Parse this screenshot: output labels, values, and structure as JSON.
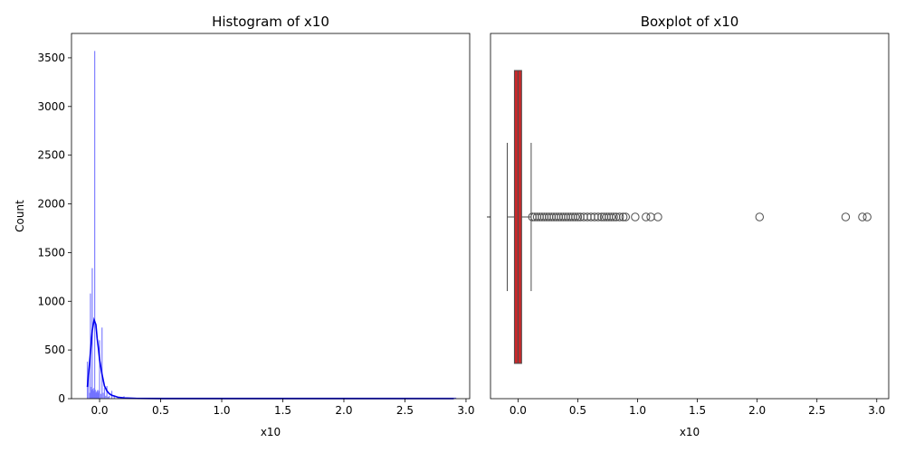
{
  "chart_data": [
    {
      "type": "bar",
      "title": "Histogram of x10",
      "xlabel": "x10",
      "ylabel": "Count",
      "xlim": [
        -0.23,
        3.03
      ],
      "ylim": [
        0,
        3750
      ],
      "xticks": [
        0.0,
        0.5,
        1.0,
        1.5,
        2.0,
        2.5,
        3.0
      ],
      "xtick_labels": [
        "0.0",
        "0.5",
        "1.0",
        "1.5",
        "2.0",
        "2.5",
        "3.0"
      ],
      "yticks": [
        0,
        500,
        1000,
        1500,
        2000,
        2500,
        3000,
        3500
      ],
      "ytick_labels": [
        "0",
        "500",
        "1000",
        "1500",
        "2000",
        "2500",
        "3000",
        "3500"
      ],
      "bar_color": "#6b6bff",
      "kde_color": "#0000ee",
      "bins": [
        {
          "x": -0.1,
          "count": 380
        },
        {
          "x": -0.09,
          "count": 250
        },
        {
          "x": -0.08,
          "count": 60
        },
        {
          "x": -0.075,
          "count": 1080
        },
        {
          "x": -0.07,
          "count": 120
        },
        {
          "x": -0.065,
          "count": 90
        },
        {
          "x": -0.06,
          "count": 1340
        },
        {
          "x": -0.055,
          "count": 100
        },
        {
          "x": -0.05,
          "count": 80
        },
        {
          "x": -0.045,
          "count": 110
        },
        {
          "x": -0.04,
          "count": 3570
        },
        {
          "x": -0.035,
          "count": 90
        },
        {
          "x": -0.03,
          "count": 60
        },
        {
          "x": -0.025,
          "count": 70
        },
        {
          "x": -0.02,
          "count": 80
        },
        {
          "x": -0.015,
          "count": 90
        },
        {
          "x": -0.01,
          "count": 60
        },
        {
          "x": -0.005,
          "count": 80
        },
        {
          "x": 0.0,
          "count": 600
        },
        {
          "x": 0.01,
          "count": 50
        },
        {
          "x": 0.02,
          "count": 730
        },
        {
          "x": 0.03,
          "count": 60
        },
        {
          "x": 0.04,
          "count": 110
        },
        {
          "x": 0.05,
          "count": 30
        },
        {
          "x": 0.06,
          "count": 130
        },
        {
          "x": 0.07,
          "count": 20
        },
        {
          "x": 0.08,
          "count": 30
        },
        {
          "x": 0.1,
          "count": 80
        },
        {
          "x": 0.12,
          "count": 20
        },
        {
          "x": 0.15,
          "count": 10
        },
        {
          "x": 0.2,
          "count": 25
        },
        {
          "x": 0.25,
          "count": 8
        },
        {
          "x": 0.3,
          "count": 5
        }
      ],
      "kde": {
        "x": [
          -0.1,
          -0.08,
          -0.06,
          -0.045,
          -0.03,
          -0.02,
          -0.01,
          0.0,
          0.02,
          0.04,
          0.06,
          0.08,
          0.1,
          0.15,
          0.2,
          0.3,
          0.5,
          1.0,
          2.0,
          2.9
        ],
        "y": [
          120,
          400,
          700,
          810,
          760,
          620,
          520,
          400,
          250,
          130,
          80,
          50,
          35,
          15,
          8,
          3,
          1,
          0.5,
          0.2,
          0.1
        ]
      }
    },
    {
      "type": "box",
      "title": "Boxplot of x10",
      "xlabel": "x10",
      "xlim": [
        -0.23,
        3.1
      ],
      "xticks": [
        0.0,
        0.5,
        1.0,
        1.5,
        2.0,
        2.5,
        3.0
      ],
      "xtick_labels": [
        "0.0",
        "0.5",
        "1.0",
        "1.5",
        "2.0",
        "2.5",
        "3.0"
      ],
      "box_color": "#c8282a",
      "line_color": "#4d4d4d",
      "whisker_low": -0.09,
      "q1": -0.03,
      "median": 0.0,
      "q3": 0.03,
      "whisker_high": 0.11,
      "outliers": [
        0.12,
        0.14,
        0.16,
        0.18,
        0.2,
        0.22,
        0.24,
        0.26,
        0.28,
        0.3,
        0.32,
        0.34,
        0.36,
        0.38,
        0.4,
        0.42,
        0.44,
        0.46,
        0.48,
        0.5,
        0.52,
        0.55,
        0.58,
        0.61,
        0.64,
        0.67,
        0.7,
        0.72,
        0.74,
        0.76,
        0.78,
        0.8,
        0.82,
        0.85,
        0.88,
        0.9,
        0.98,
        1.07,
        1.11,
        1.17,
        2.02,
        2.74,
        2.88,
        2.92
      ]
    }
  ]
}
